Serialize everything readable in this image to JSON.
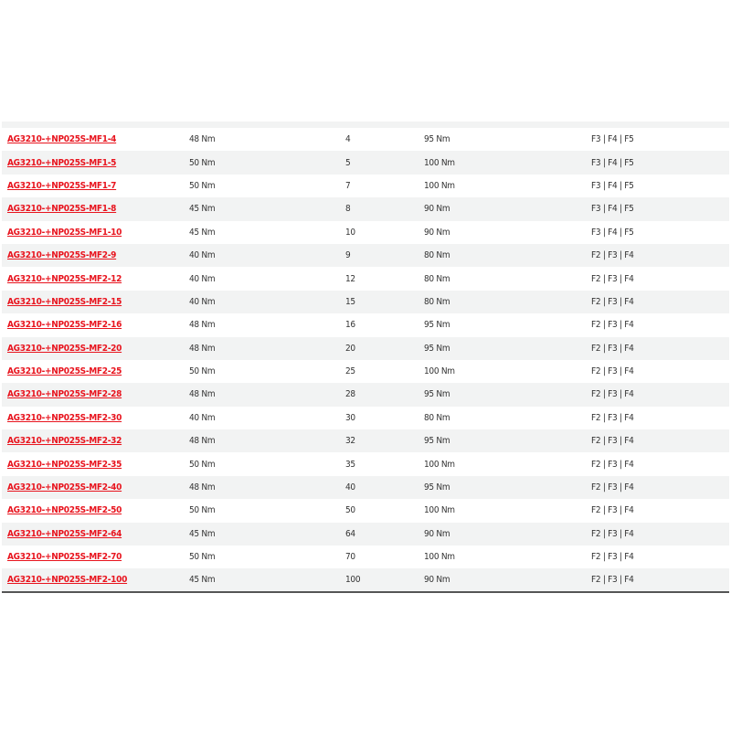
{
  "colors": {
    "link": "#e8141e",
    "row_alt": "#f2f3f3",
    "text": "#333333"
  },
  "rows": [
    [
      "AG3210-+NP025S-MF1-4",
      "48 Nm",
      "4",
      "95 Nm",
      "F3 | F4 | F5"
    ],
    [
      "AG3210-+NP025S-MF1-5",
      "50 Nm",
      "5",
      "100 Nm",
      "F3 | F4 | F5"
    ],
    [
      "AG3210-+NP025S-MF1-7",
      "50 Nm",
      "7",
      "100 Nm",
      "F3 | F4 | F5"
    ],
    [
      "AG3210-+NP025S-MF1-8",
      "45 Nm",
      "8",
      "90 Nm",
      "F3 | F4 | F5"
    ],
    [
      "AG3210-+NP025S-MF1-10",
      "45 Nm",
      "10",
      "90 Nm",
      "F3 | F4 | F5"
    ],
    [
      "AG3210-+NP025S-MF2-9",
      "40 Nm",
      "9",
      "80 Nm",
      "F2 | F3 | F4"
    ],
    [
      "AG3210-+NP025S-MF2-12",
      "40 Nm",
      "12",
      "80 Nm",
      "F2 | F3 | F4"
    ],
    [
      "AG3210-+NP025S-MF2-15",
      "40 Nm",
      "15",
      "80 Nm",
      "F2 | F3 | F4"
    ],
    [
      "AG3210-+NP025S-MF2-16",
      "48 Nm",
      "16",
      "95 Nm",
      "F2 | F3 | F4"
    ],
    [
      "AG3210-+NP025S-MF2-20",
      "48 Nm",
      "20",
      "95 Nm",
      "F2 | F3 | F4"
    ],
    [
      "AG3210-+NP025S-MF2-25",
      "50 Nm",
      "25",
      "100 Nm",
      "F2 | F3 | F4"
    ],
    [
      "AG3210-+NP025S-MF2-28",
      "48 Nm",
      "28",
      "95 Nm",
      "F2 | F3 | F4"
    ],
    [
      "AG3210-+NP025S-MF2-30",
      "40 Nm",
      "30",
      "80 Nm",
      "F2 | F3 | F4"
    ],
    [
      "AG3210-+NP025S-MF2-32",
      "48 Nm",
      "32",
      "95 Nm",
      "F2 | F3 | F4"
    ],
    [
      "AG3210-+NP025S-MF2-35",
      "50 Nm",
      "35",
      "100 Nm",
      "F2 | F3 | F4"
    ],
    [
      "AG3210-+NP025S-MF2-40",
      "48 Nm",
      "40",
      "95 Nm",
      "F2 | F3 | F4"
    ],
    [
      "AG3210-+NP025S-MF2-50",
      "50 Nm",
      "50",
      "100 Nm",
      "F2 | F3 | F4"
    ],
    [
      "AG3210-+NP025S-MF2-64",
      "45 Nm",
      "64",
      "90 Nm",
      "F2 | F3 | F4"
    ],
    [
      "AG3210-+NP025S-MF2-70",
      "50 Nm",
      "70",
      "100 Nm",
      "F2 | F3 | F4"
    ],
    [
      "AG3210-+NP025S-MF2-100",
      "45 Nm",
      "100",
      "90 Nm",
      "F2 | F3 | F4"
    ]
  ]
}
